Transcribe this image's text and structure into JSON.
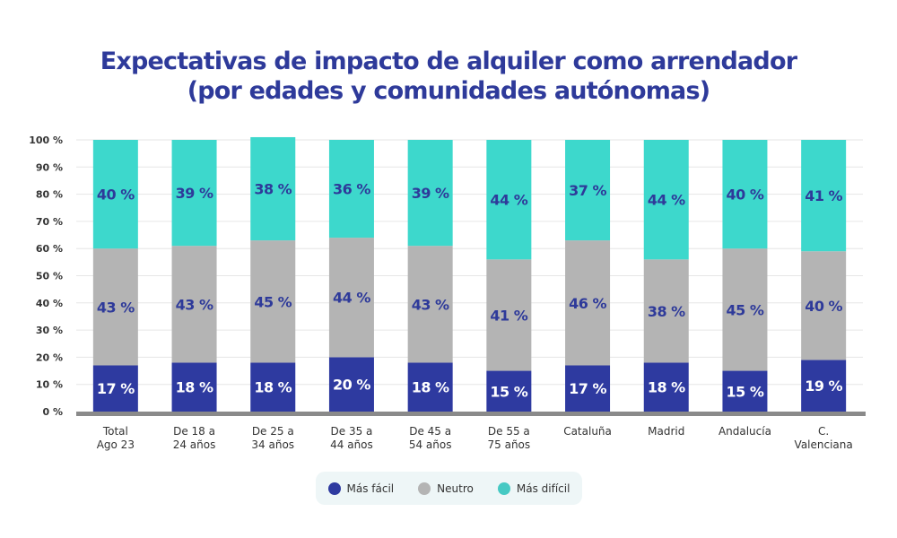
{
  "chart_data": {
    "type": "bar",
    "stacked": true,
    "title": "Expectativas de impacto de alquiler como arrendador (por edades y comunidades autónomas)",
    "title_lines": [
      "Expectativas de impacto de alquiler como arrendador",
      "(por edades y comunidades autónomas)"
    ],
    "categories": [
      [
        "Total",
        "Ago 23"
      ],
      [
        "De 18 a",
        "24 años"
      ],
      [
        "De 25 a",
        "34 años"
      ],
      [
        "De 35 a",
        "44 años"
      ],
      [
        "De 45 a",
        "54 años"
      ],
      [
        "De 55 a",
        "75 años"
      ],
      [
        "Cataluña"
      ],
      [
        "Madrid"
      ],
      [
        "Andalucía"
      ],
      [
        "C.",
        "Valenciana"
      ]
    ],
    "series": [
      {
        "name": "Más fácil",
        "color": "#2e3aa0",
        "label_color": "#ffffff",
        "values": [
          17,
          18,
          18,
          20,
          18,
          15,
          17,
          18,
          15,
          19
        ]
      },
      {
        "name": "Neutro",
        "color": "#b4b4b4",
        "label_color": "#2e3a9a",
        "values": [
          43,
          43,
          45,
          44,
          43,
          41,
          46,
          38,
          45,
          40
        ]
      },
      {
        "name": "Más difícil",
        "color": "#3dd8cc",
        "label_color": "#2e3a9a",
        "values": [
          40,
          39,
          38,
          36,
          39,
          44,
          37,
          44,
          40,
          41
        ]
      }
    ],
    "ylim": [
      0,
      100
    ],
    "yticks": [
      "0 %",
      "10 %",
      "20 %",
      "30 %",
      "40 %",
      "50 %",
      "60 %",
      "70 %",
      "80 %",
      "90 %",
      "100 %"
    ],
    "value_suffix": " %",
    "grid": true,
    "legend": "bottom"
  }
}
